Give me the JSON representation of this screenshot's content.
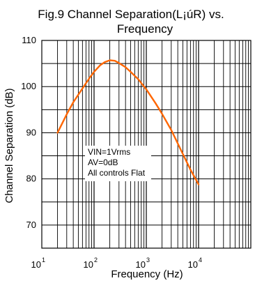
{
  "chart_data": {
    "type": "line",
    "title_line1": "Fig.9 Channel Separation(L¡úR) vs.",
    "title_line2": "Frequency",
    "xlabel": "Frequency  (Hz)",
    "ylabel": "Channel Separation (dB)",
    "x_scale": "log",
    "xlim": [
      10,
      100000
    ],
    "ylim": [
      65,
      110
    ],
    "grid": true,
    "x_ticks": [
      {
        "base": "10",
        "exp": "1",
        "value": 10
      },
      {
        "base": "10",
        "exp": "2",
        "value": 100
      },
      {
        "base": "10",
        "exp": "3",
        "value": 1000
      },
      {
        "base": "10",
        "exp": "4",
        "value": 10000
      }
    ],
    "y_ticks": [
      {
        "label": "70",
        "value": 70
      },
      {
        "label": "80",
        "value": 80
      },
      {
        "label": "90",
        "value": 90
      },
      {
        "label": "100",
        "value": 100
      },
      {
        "label": "110",
        "value": 110
      }
    ],
    "annotation": [
      "VIN=1Vrms",
      "AV=0dB",
      "All controls Flat"
    ],
    "line_color": "#ff6600",
    "series": [
      {
        "x": [
          20,
          30,
          40,
          60,
          80,
          100,
          130,
          160,
          200,
          250,
          300,
          400,
          500,
          700,
          1000,
          1500,
          2000,
          3000,
          5000,
          7000,
          10000
        ],
        "y": [
          90.0,
          94.0,
          96.6,
          99.6,
          101.7,
          103.2,
          104.6,
          105.3,
          105.7,
          105.6,
          105.1,
          104.2,
          103.2,
          101.6,
          99.4,
          96.4,
          94.1,
          90.6,
          85.4,
          82.0,
          78.8
        ]
      }
    ]
  }
}
